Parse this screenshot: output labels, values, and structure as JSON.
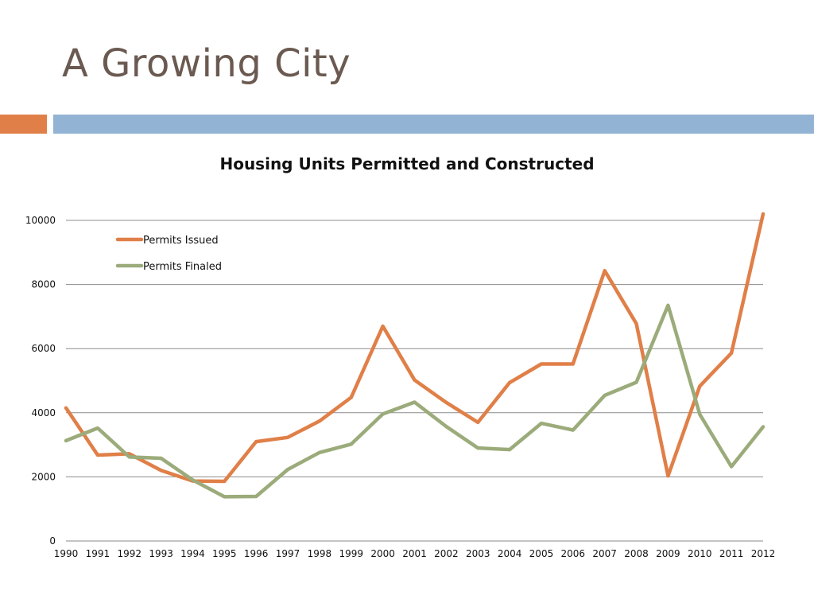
{
  "slide": {
    "title": "A Growing City",
    "accent_colors": {
      "orange": "#e07f48",
      "blue": "#93b3d4"
    }
  },
  "chart_data": {
    "type": "line",
    "title": "Housing Units Permitted and Constructed",
    "xlabel": "",
    "ylabel": "",
    "categories": [
      "1990",
      "1991",
      "1992",
      "1993",
      "1994",
      "1995",
      "1996",
      "1997",
      "1998",
      "1999",
      "2000",
      "2001",
      "2002",
      "2003",
      "2004",
      "2005",
      "2006",
      "2007",
      "2008",
      "2009",
      "2010",
      "2011",
      "2012"
    ],
    "ylim": [
      0,
      10000
    ],
    "yticks": [
      0,
      2000,
      4000,
      6000,
      8000,
      10000
    ],
    "grid": true,
    "legend_position": "top-left",
    "series": [
      {
        "name": "Permits Issued",
        "color": "#e07f48",
        "values": [
          4150,
          2680,
          2720,
          2200,
          1870,
          1860,
          3100,
          3230,
          3740,
          4480,
          6700,
          5020,
          4320,
          3700,
          4940,
          5520,
          5520,
          8430,
          6780,
          2030,
          4830,
          5860,
          10200
        ]
      },
      {
        "name": "Permits Finaled",
        "color": "#9bab7a",
        "values": [
          3130,
          3520,
          2620,
          2580,
          1900,
          1380,
          1390,
          2230,
          2760,
          3020,
          3960,
          4330,
          3570,
          2900,
          2850,
          3670,
          3460,
          4540,
          4950,
          7350,
          3950,
          2320,
          3560
        ]
      }
    ]
  }
}
